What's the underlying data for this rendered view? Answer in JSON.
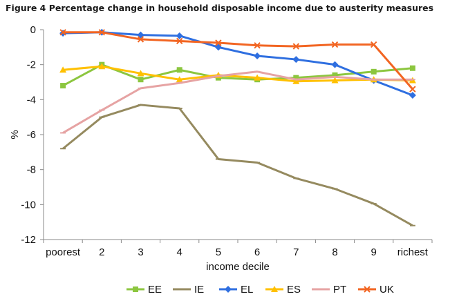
{
  "chart_data": {
    "type": "line",
    "title": "Figure 4 Percentage change in household disposable income due to austerity measures",
    "xlabel": "income decile",
    "ylabel": "%",
    "categories": [
      "poorest",
      "2",
      "3",
      "4",
      "5",
      "6",
      "7",
      "8",
      "9",
      "richest"
    ],
    "ylim": [
      -12,
      0
    ],
    "yticks": [
      0,
      -2,
      -4,
      -6,
      -8,
      -10,
      -12
    ],
    "grid": false,
    "legend_position": "bottom",
    "series": [
      {
        "name": "EE",
        "color": "#8cc63f",
        "marker": "square",
        "values": [
          -3.2,
          -2.0,
          -2.85,
          -2.3,
          -2.75,
          -2.85,
          -2.75,
          -2.6,
          -2.4,
          -2.2
        ]
      },
      {
        "name": "IE",
        "color": "#958a5f",
        "marker": "dash",
        "values": [
          -6.8,
          -5.0,
          -4.3,
          -4.5,
          -7.4,
          -7.6,
          -8.5,
          -9.1,
          -9.95,
          -11.2
        ]
      },
      {
        "name": "EL",
        "color": "#2f6fe0",
        "marker": "diamond",
        "values": [
          -0.2,
          -0.15,
          -0.3,
          -0.35,
          -1.0,
          -1.5,
          -1.7,
          -2.0,
          -2.9,
          -3.75
        ]
      },
      {
        "name": "ES",
        "color": "#ffc000",
        "marker": "triangle",
        "values": [
          -2.3,
          -2.1,
          -2.5,
          -2.85,
          -2.6,
          -2.75,
          -2.95,
          -2.9,
          -2.85,
          -2.9
        ]
      },
      {
        "name": "PT",
        "color": "#e6a3a3",
        "marker": "plus",
        "values": [
          -5.9,
          -4.6,
          -3.35,
          -3.05,
          -2.65,
          -2.4,
          -2.85,
          -2.7,
          -2.85,
          -2.85
        ]
      },
      {
        "name": "UK",
        "color": "#f26522",
        "marker": "x",
        "values": [
          -0.15,
          -0.15,
          -0.55,
          -0.65,
          -0.75,
          -0.9,
          -0.95,
          -0.85,
          -0.85,
          -3.4
        ]
      }
    ]
  }
}
